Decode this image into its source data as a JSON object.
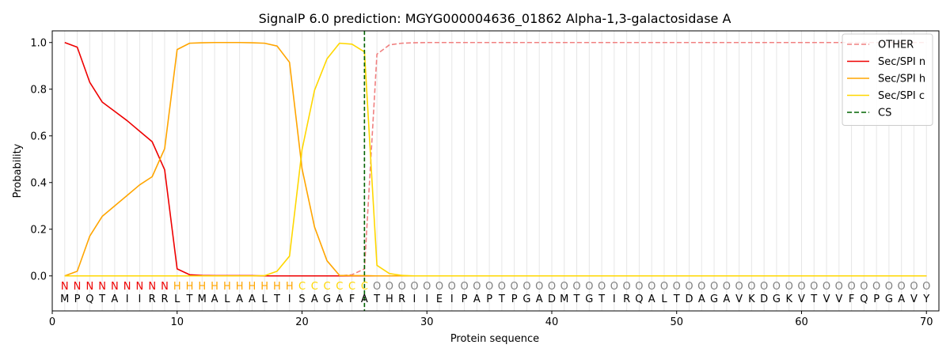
{
  "chart_data": {
    "type": "line",
    "title": "SignalP 6.0 prediction: MGYG000004636_01862 Alpha-1,3-galactosidase A",
    "xlabel": "Protein sequence",
    "ylabel": "Probability",
    "xlim": [
      0,
      71
    ],
    "ylim": [
      -0.15,
      1.05
    ],
    "xticks": [
      0,
      10,
      20,
      30,
      40,
      50,
      60,
      70
    ],
    "yticks": [
      0.0,
      0.2,
      0.4,
      0.6,
      0.8,
      1.0
    ],
    "grid": "vertical per residue",
    "legend_position": "top-right",
    "sequence": "MPQTAIIRRLTMALAALTISAGAFATHRIIEIPAPTPGADMTGTIRQALTDAGAVKDGKVTVVFQPGAVY",
    "labels": "NNNNNNNNNHHHHHHHHHHCCCCCCOOOOOOOOOOOOOOOOOOOOOOOOOOOOOOOOOOOOOOOOOOOOO",
    "label_colors": {
      "N": "#ee0000",
      "H": "#ffa500",
      "C": "#ffd700",
      "O": "#808080"
    },
    "cleavage_site": 25,
    "x": [
      1,
      2,
      3,
      4,
      5,
      6,
      7,
      8,
      9,
      10,
      11,
      12,
      13,
      14,
      15,
      16,
      17,
      18,
      19,
      20,
      21,
      22,
      23,
      24,
      25,
      26,
      27,
      28,
      29,
      30,
      31,
      32,
      33,
      34,
      35,
      36,
      37,
      38,
      39,
      40,
      41,
      42,
      43,
      44,
      45,
      46,
      47,
      48,
      49,
      50,
      51,
      52,
      53,
      54,
      55,
      56,
      57,
      58,
      59,
      60,
      61,
      62,
      63,
      64,
      65,
      66,
      67,
      68,
      69,
      70
    ],
    "series": [
      {
        "name": "OTHER",
        "color": "#f08080",
        "style": "dashed",
        "values": [
          0,
          0,
          0,
          0,
          0,
          0,
          0,
          0,
          0,
          0,
          0,
          0,
          0,
          0,
          0,
          0,
          0,
          0,
          0,
          0,
          0,
          0,
          0,
          0.005,
          0.03,
          0.95,
          0.99,
          0.997,
          0.999,
          1,
          1,
          1,
          1,
          1,
          1,
          1,
          1,
          1,
          1,
          1,
          1,
          1,
          1,
          1,
          1,
          1,
          1,
          1,
          1,
          1,
          1,
          1,
          1,
          1,
          1,
          1,
          1,
          1,
          1,
          1,
          1,
          1,
          1,
          1,
          1,
          1,
          1,
          1,
          1,
          1
        ]
      },
      {
        "name": "Sec/SPI n",
        "color": "#ee0000",
        "style": "solid",
        "values": [
          1.0,
          0.98,
          0.83,
          0.745,
          0.705,
          0.665,
          0.62,
          0.575,
          0.455,
          0.03,
          0.005,
          0.002,
          0.001,
          0.001,
          0.001,
          0.001,
          0,
          0,
          0,
          0,
          0,
          0,
          0,
          0,
          0,
          0,
          0,
          0,
          0,
          0,
          0,
          0,
          0,
          0,
          0,
          0,
          0,
          0,
          0,
          0,
          0,
          0,
          0,
          0,
          0,
          0,
          0,
          0,
          0,
          0,
          0,
          0,
          0,
          0,
          0,
          0,
          0,
          0,
          0,
          0,
          0,
          0,
          0,
          0,
          0,
          0,
          0,
          0,
          0,
          0
        ]
      },
      {
        "name": "Sec/SPI h",
        "color": "#ffa500",
        "style": "solid",
        "values": [
          0,
          0.02,
          0.17,
          0.255,
          0.3,
          0.345,
          0.39,
          0.425,
          0.545,
          0.97,
          0.997,
          0.999,
          1,
          1,
          1,
          0.999,
          0.997,
          0.985,
          0.915,
          0.46,
          0.21,
          0.065,
          0.002,
          0.001,
          0.001,
          0,
          0,
          0,
          0,
          0,
          0,
          0,
          0,
          0,
          0,
          0,
          0,
          0,
          0,
          0,
          0,
          0,
          0,
          0,
          0,
          0,
          0,
          0,
          0,
          0,
          0,
          0,
          0,
          0,
          0,
          0,
          0,
          0,
          0,
          0,
          0,
          0,
          0,
          0,
          0,
          0,
          0,
          0,
          0,
          0
        ]
      },
      {
        "name": "Sec/SPI c",
        "color": "#ffd700",
        "style": "solid",
        "values": [
          0,
          0,
          0,
          0,
          0,
          0,
          0,
          0,
          0,
          0,
          0,
          0,
          0,
          0,
          0,
          0,
          0.001,
          0.02,
          0.085,
          0.54,
          0.795,
          0.93,
          0.997,
          0.993,
          0.96,
          0.045,
          0.01,
          0.002,
          0,
          0,
          0,
          0,
          0,
          0,
          0,
          0,
          0,
          0,
          0,
          0,
          0,
          0,
          0,
          0,
          0,
          0,
          0,
          0,
          0,
          0,
          0,
          0,
          0,
          0,
          0,
          0,
          0,
          0,
          0,
          0,
          0,
          0,
          0,
          0,
          0,
          0,
          0,
          0,
          0,
          0
        ]
      }
    ],
    "legend": [
      {
        "name": "OTHER",
        "color": "#f08080",
        "style": "dashed"
      },
      {
        "name": "Sec/SPI n",
        "color": "#ee0000",
        "style": "solid"
      },
      {
        "name": "Sec/SPI h",
        "color": "#ffa500",
        "style": "solid"
      },
      {
        "name": "Sec/SPI c",
        "color": "#ffd700",
        "style": "solid"
      },
      {
        "name": "CS",
        "color": "#006400",
        "style": "dashed"
      }
    ]
  }
}
